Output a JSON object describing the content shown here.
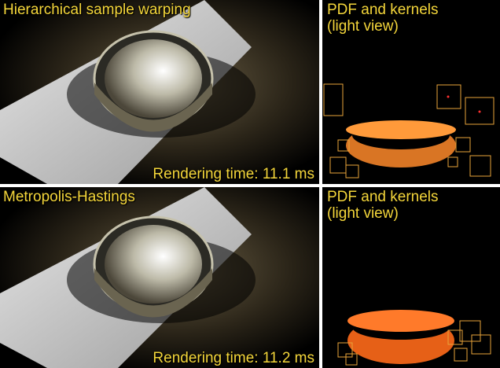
{
  "panels": {
    "top_left": {
      "title": "Hierarchical sample warping",
      "time": "Rendering time: 11.1 ms"
    },
    "top_right": {
      "title": "PDF and kernels\n(light view)"
    },
    "bottom_left": {
      "title": "Metropolis-Hastings",
      "time": "Rendering time: 11.2 ms"
    },
    "bottom_right": {
      "title": "PDF and kernels\n(light view)"
    }
  },
  "colors": {
    "label": "#f4d63a",
    "kernel": "#e8a43a",
    "pdf": "#ff8a2a"
  }
}
